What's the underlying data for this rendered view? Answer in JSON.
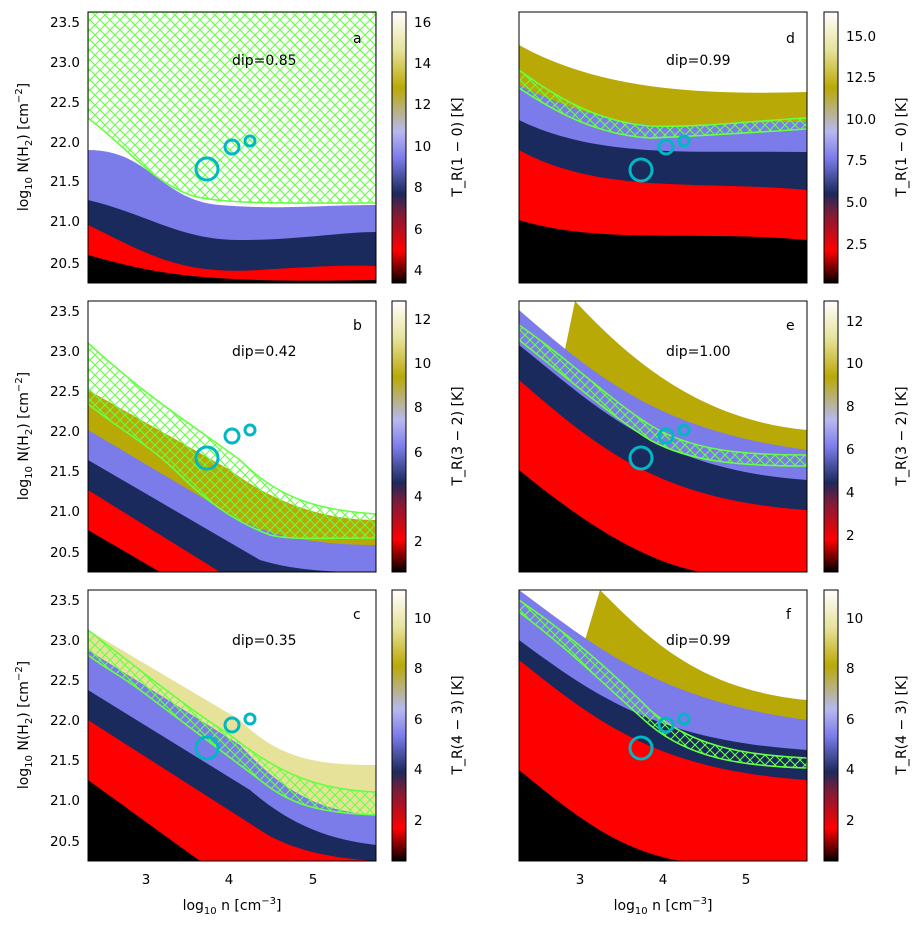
{
  "figure": {
    "xlabel_main": "log",
    "xlabel_sub": "10",
    "xlabel_rest": " n [cm",
    "xlabel_sup": "−3",
    "xlabel_end": "]",
    "ylabel_main": "log",
    "ylabel_sub": "10",
    "ylabel_rest": " N(H",
    "ylabel_sub2": "2",
    "ylabel_rest2": ") [cm",
    "ylabel_sup": "−2",
    "ylabel_end": "]"
  },
  "chart_data": [
    {
      "type": "heatmap",
      "panel": "a",
      "transition": "1 − 0",
      "annotation": "dip=0.85",
      "xlim": [
        2.35,
        5.75
      ],
      "ylim": [
        20.28,
        23.67
      ],
      "xticks": [
        "3",
        "4",
        "5"
      ],
      "yticks": [
        "20.5",
        "21.0",
        "21.5",
        "22.0",
        "22.5",
        "23.0",
        "23.5"
      ],
      "colorbar": {
        "label": "T_R(1 − 0) [K]",
        "range": [
          3.6,
          16.6
        ],
        "ticks": [
          "4",
          "6",
          "8",
          "10",
          "12",
          "14",
          "16"
        ]
      },
      "contour_band": [
        [
          2.35,
          22.3,
          22.42
        ],
        [
          3.0,
          21.95,
          22.05
        ],
        [
          3.5,
          21.5,
          21.55
        ],
        [
          4.0,
          21.3,
          21.32
        ],
        [
          4.5,
          21.25,
          21.27
        ],
        [
          5.0,
          21.25,
          21.27
        ],
        [
          5.75,
          21.25,
          21.27
        ]
      ],
      "hatch_fill_above": true,
      "circles": [
        {
          "x": 3.75,
          "y": 21.65,
          "size": "large"
        },
        {
          "x": 4.05,
          "y": 21.95,
          "size": "medium"
        },
        {
          "x": 4.27,
          "y": 22.03,
          "size": "small"
        }
      ]
    },
    {
      "type": "heatmap",
      "panel": "b",
      "transition": "3 − 2",
      "annotation": "dip=0.42",
      "xlim": [
        2.35,
        5.75
      ],
      "ylim": [
        20.28,
        23.67
      ],
      "xticks": [
        "3",
        "4",
        "5"
      ],
      "yticks": [
        "20.5",
        "21.0",
        "21.5",
        "22.0",
        "22.5",
        "23.0",
        "23.5"
      ],
      "colorbar": {
        "label": "T_R(3 − 2) [K]",
        "range": [
          0.6,
          12.7
        ],
        "ticks": [
          "2",
          "4",
          "6",
          "8",
          "10",
          "12"
        ]
      },
      "contour_band": [
        [
          2.35,
          22.45,
          23.1
        ],
        [
          3.0,
          22.05,
          22.6
        ],
        [
          3.5,
          21.75,
          22.2
        ],
        [
          4.0,
          21.35,
          21.85
        ],
        [
          4.5,
          20.95,
          21.3
        ],
        [
          5.0,
          20.75,
          21.05
        ],
        [
          5.75,
          20.7,
          20.97
        ]
      ],
      "hatch_fill_above": false,
      "circles": [
        {
          "x": 3.75,
          "y": 21.65,
          "size": "large"
        },
        {
          "x": 4.05,
          "y": 21.95,
          "size": "medium"
        },
        {
          "x": 4.27,
          "y": 22.03,
          "size": "small"
        }
      ]
    },
    {
      "type": "heatmap",
      "panel": "c",
      "transition": "4 − 3",
      "annotation": "dip=0.35",
      "xlim": [
        2.35,
        5.75
      ],
      "ylim": [
        20.28,
        23.67
      ],
      "xticks": [
        "3",
        "4",
        "5"
      ],
      "yticks": [
        "20.5",
        "21.0",
        "21.5",
        "22.0",
        "22.5",
        "23.0",
        "23.5"
      ],
      "colorbar": {
        "label": "T_R(4 − 3) [K]",
        "range": [
          0.2,
          11.0
        ],
        "ticks": [
          "2",
          "4",
          "6",
          "8",
          "10"
        ]
      },
      "contour_band": [
        [
          2.35,
          22.9,
          23.15
        ],
        [
          3.0,
          22.5,
          22.75
        ],
        [
          3.5,
          22.05,
          22.35
        ],
        [
          4.0,
          21.6,
          21.9
        ],
        [
          4.5,
          21.1,
          21.35
        ],
        [
          5.0,
          20.88,
          21.05
        ],
        [
          5.75,
          20.8,
          20.95
        ]
      ],
      "hatch_fill_above": false,
      "circles": [
        {
          "x": 3.75,
          "y": 21.65,
          "size": "large"
        },
        {
          "x": 4.05,
          "y": 21.95,
          "size": "medium"
        },
        {
          "x": 4.27,
          "y": 22.03,
          "size": "small"
        }
      ]
    },
    {
      "type": "heatmap",
      "panel": "d",
      "transition": "1 − 0",
      "annotation": "dip=0.99",
      "xlim": [
        2.35,
        5.75
      ],
      "ylim": [
        20.28,
        23.67
      ],
      "xticks": [
        "3",
        "4",
        "5"
      ],
      "yticks": [],
      "colorbar": {
        "label": "T_R(1 − 0) [K]",
        "range": [
          0.2,
          16.6
        ],
        "ticks": [
          "2.5",
          "5.0",
          "7.5",
          "10.0",
          "12.5",
          "15.0"
        ]
      },
      "contour_band": [
        [
          2.35,
          22.7,
          22.9
        ],
        [
          3.0,
          22.3,
          22.5
        ],
        [
          3.5,
          22.12,
          22.25
        ],
        [
          4.0,
          22.1,
          22.22
        ],
        [
          4.5,
          22.15,
          22.27
        ],
        [
          5.0,
          22.2,
          22.3
        ],
        [
          5.75,
          22.2,
          22.32
        ]
      ],
      "hatch_fill_above": false,
      "circles": [
        {
          "x": 3.75,
          "y": 21.65,
          "size": "large"
        },
        {
          "x": 4.05,
          "y": 21.95,
          "size": "medium"
        },
        {
          "x": 4.27,
          "y": 22.03,
          "size": "small"
        }
      ]
    },
    {
      "type": "heatmap",
      "panel": "e",
      "transition": "3 − 2",
      "annotation": "dip=1.00",
      "xlim": [
        2.35,
        5.75
      ],
      "ylim": [
        20.28,
        23.67
      ],
      "xticks": [
        "3",
        "4",
        "5"
      ],
      "yticks": [],
      "colorbar": {
        "label": "T_R(3 − 2) [K]",
        "range": [
          0.2,
          12.9
        ],
        "ticks": [
          "2",
          "4",
          "6",
          "8",
          "10",
          "12"
        ]
      },
      "contour_band": [
        [
          2.35,
          23.1,
          23.3
        ],
        [
          3.0,
          22.65,
          22.85
        ],
        [
          3.5,
          22.3,
          22.48
        ],
        [
          4.0,
          21.95,
          22.1
        ],
        [
          4.5,
          21.72,
          21.85
        ],
        [
          5.0,
          21.65,
          21.75
        ],
        [
          5.75,
          21.62,
          21.73
        ]
      ],
      "hatch_fill_above": false,
      "circles": [
        {
          "x": 3.75,
          "y": 21.65,
          "size": "large"
        },
        {
          "x": 4.05,
          "y": 21.95,
          "size": "medium"
        },
        {
          "x": 4.27,
          "y": 22.03,
          "size": "small"
        }
      ]
    },
    {
      "type": "heatmap",
      "panel": "f",
      "transition": "4 − 3",
      "annotation": "dip=0.99",
      "xlim": [
        2.35,
        5.75
      ],
      "ylim": [
        20.28,
        23.67
      ],
      "xticks": [
        "3",
        "4",
        "5"
      ],
      "yticks": [],
      "colorbar": {
        "label": "T_R(4 − 3) [K]",
        "range": [
          0.2,
          11.1
        ],
        "ticks": [
          "2",
          "4",
          "6",
          "8",
          "10"
        ]
      },
      "contour_band": [
        [
          2.35,
          23.35,
          23.5
        ],
        [
          3.0,
          22.95,
          23.08
        ],
        [
          3.5,
          22.55,
          22.68
        ],
        [
          4.0,
          22.08,
          22.2
        ],
        [
          4.5,
          21.72,
          21.85
        ],
        [
          5.0,
          21.52,
          21.62
        ],
        [
          5.75,
          21.45,
          21.55
        ]
      ],
      "hatch_fill_above": false,
      "circles": [
        {
          "x": 3.75,
          "y": 21.65,
          "size": "large"
        },
        {
          "x": 4.05,
          "y": 21.95,
          "size": "medium"
        },
        {
          "x": 4.27,
          "y": 22.03,
          "size": "small"
        }
      ]
    }
  ]
}
